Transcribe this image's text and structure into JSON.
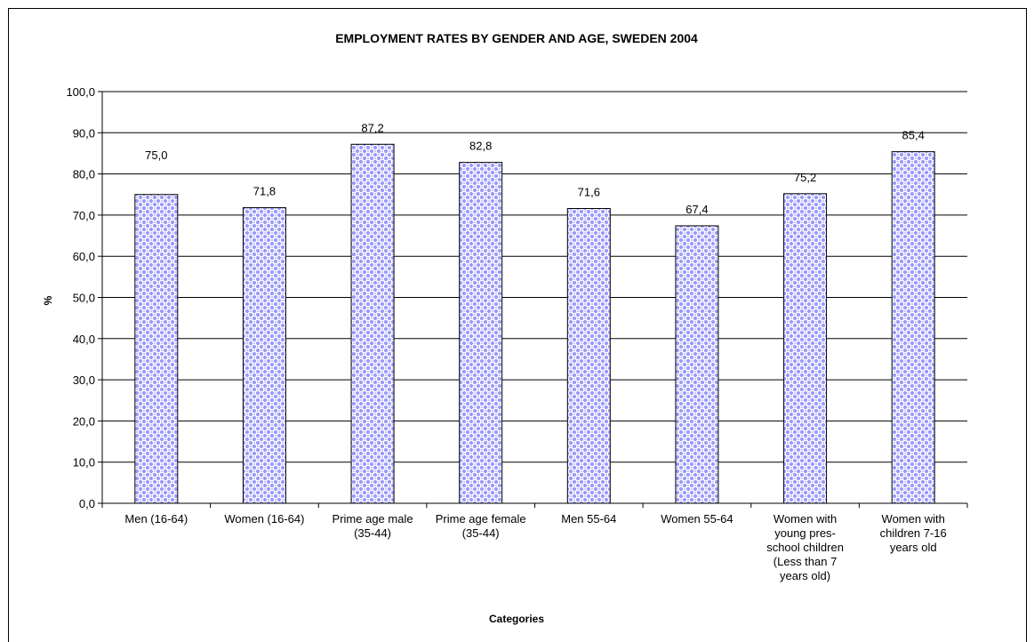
{
  "chart_data": {
    "type": "bar",
    "title": "EMPLOYMENT RATES BY GENDER AND AGE, SWEDEN 2004",
    "xlabel": "Categories",
    "ylabel": "%",
    "ylim": [
      0,
      100
    ],
    "ytick_step": 10,
    "ytick_labels": [
      "0,0",
      "10,0",
      "20,0",
      "30,0",
      "40,0",
      "50,0",
      "60,0",
      "70,0",
      "80,0",
      "90,0",
      "100,0"
    ],
    "grid": true,
    "categories": [
      [
        "Men (16-64)"
      ],
      [
        "Women (16-64)"
      ],
      [
        "Prime age male",
        "(35-44)"
      ],
      [
        "Prime age female",
        "(35-44)"
      ],
      [
        "Men 55-64"
      ],
      [
        "Women 55-64"
      ],
      [
        "Women with",
        "young pres-",
        "school children",
        "(Less than 7",
        "years old)"
      ],
      [
        "Women with",
        "children 7-16",
        "years old"
      ]
    ],
    "values": [
      75.0,
      71.8,
      87.2,
      82.8,
      71.6,
      67.4,
      75.2,
      85.4
    ],
    "data_labels": [
      "75,0",
      "71,8",
      "87,2",
      "82,8",
      "71,6",
      "67,4",
      "75,2",
      "85,4"
    ],
    "bar_color": "#9999ff",
    "bar_pattern": "dotted",
    "legend": "none"
  }
}
